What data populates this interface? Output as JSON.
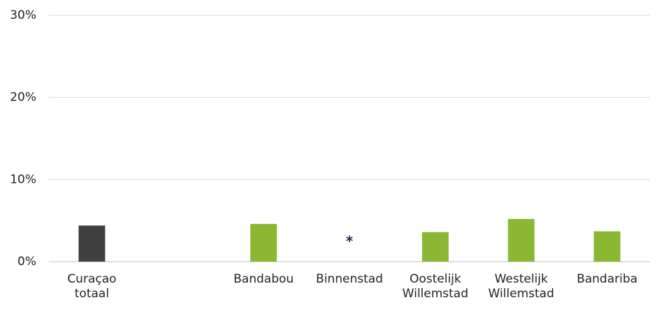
{
  "chart_data": {
    "type": "bar",
    "categories": [
      "Curaçao totaal",
      null,
      "Bandabou",
      "Binnenstad",
      "Oostelijk Willemstad",
      "Westelijk Willemstad",
      "Bandariba"
    ],
    "values": [
      4.4,
      null,
      4.6,
      null,
      3.6,
      5.2,
      3.7
    ],
    "colors": [
      "#404040",
      null,
      "#8ab833",
      "#8ab833",
      "#8ab833",
      "#8ab833",
      "#8ab833"
    ],
    "annotations": [
      {
        "category": "Binnenstad",
        "text": "*"
      }
    ],
    "ylim": [
      0,
      30
    ],
    "yticks": [
      {
        "value": 0,
        "label": "0%"
      },
      {
        "value": 10,
        "label": "10%"
      },
      {
        "value": 20,
        "label": "20%"
      },
      {
        "value": 30,
        "label": "30%"
      }
    ],
    "grid": true
  }
}
